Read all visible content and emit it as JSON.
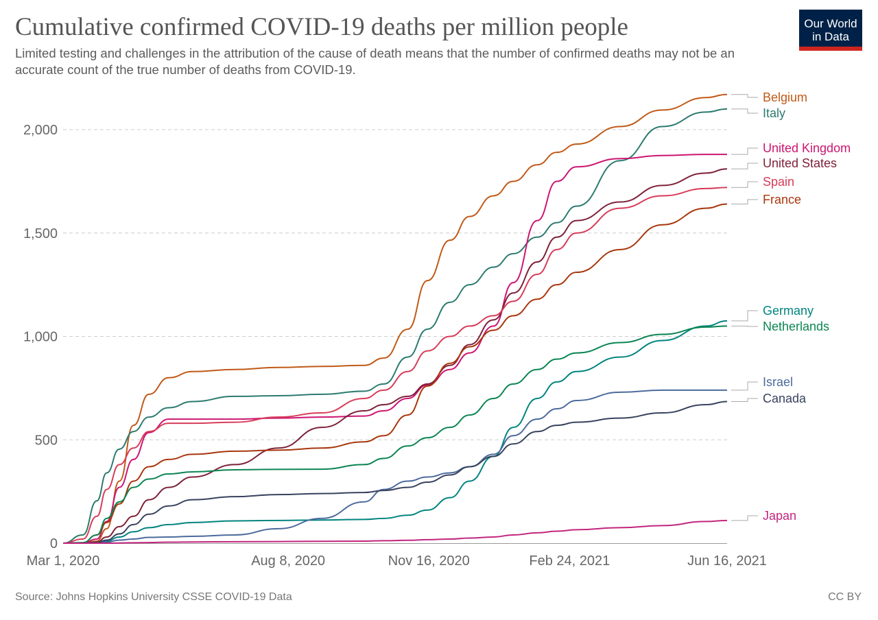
{
  "title": "Cumulative confirmed COVID-19 deaths per million people",
  "subtitle": "Limited testing and challenges in the attribution of the cause of death means that the number of confirmed deaths may not be an accurate count of the true number of deaths from COVID-19.",
  "logo": {
    "text": "Our World in Data",
    "bg": "#002147",
    "accent": "#ce261e"
  },
  "source": "Source: Johns Hopkins University CSSE COVID-19 Data",
  "license": "CC BY",
  "chart_data": {
    "type": "line",
    "title": "Cumulative confirmed COVID-19 deaths per million people",
    "xlabel": "",
    "ylabel": "",
    "xlim": [
      "2020-03-01",
      "2021-06-16"
    ],
    "ylim": [
      0,
      2170
    ],
    "grid": "horizontal dashed",
    "legend": "right, labels at line ends",
    "x_ticks": [
      {
        "date": "2020-03-01",
        "label": "Mar 1, 2020"
      },
      {
        "date": "2020-08-08",
        "label": "Aug 8, 2020"
      },
      {
        "date": "2020-11-16",
        "label": "Nov 16, 2020"
      },
      {
        "date": "2021-02-24",
        "label": "Feb 24, 2021"
      },
      {
        "date": "2021-06-16",
        "label": "Jun 16, 2021"
      }
    ],
    "y_ticks": [
      {
        "value": 0,
        "label": "0"
      },
      {
        "value": 500,
        "label": "500"
      },
      {
        "value": 1000,
        "label": "1,000"
      },
      {
        "value": 1500,
        "label": "1,500"
      },
      {
        "value": 2000,
        "label": "2,000"
      }
    ],
    "dates": [
      "2020-03-01",
      "2020-03-15",
      "2020-03-25",
      "2020-04-01",
      "2020-04-10",
      "2020-04-20",
      "2020-05-01",
      "2020-05-15",
      "2020-06-01",
      "2020-07-01",
      "2020-08-01",
      "2020-09-01",
      "2020-10-01",
      "2020-10-15",
      "2020-11-01",
      "2020-11-15",
      "2020-12-01",
      "2020-12-15",
      "2021-01-01",
      "2021-01-15",
      "2021-02-01",
      "2021-02-15",
      "2021-03-01",
      "2021-04-01",
      "2021-05-01",
      "2021-06-01",
      "2021-06-16"
    ],
    "series": [
      {
        "name": "Belgium",
        "color": "#c05917",
        "values": [
          0,
          0,
          10,
          70,
          300,
          570,
          720,
          800,
          830,
          840,
          850,
          855,
          860,
          895,
          1035,
          1270,
          1465,
          1580,
          1680,
          1750,
          1830,
          1890,
          1930,
          2015,
          2095,
          2155,
          2170
        ]
      },
      {
        "name": "Italy",
        "color": "#2b7a6f",
        "values": [
          0,
          40,
          205,
          340,
          455,
          540,
          610,
          655,
          685,
          710,
          713,
          720,
          735,
          770,
          900,
          1035,
          1165,
          1250,
          1335,
          1400,
          1480,
          1550,
          1630,
          1850,
          2015,
          2085,
          2100
        ]
      },
      {
        "name": "United Kingdom",
        "color": "#cc1572",
        "values": [
          0,
          0,
          20,
          105,
          270,
          405,
          535,
          600,
          600,
          600,
          605,
          610,
          615,
          640,
          700,
          765,
          840,
          920,
          1050,
          1260,
          1560,
          1750,
          1820,
          1860,
          1875,
          1880,
          1880
        ]
      },
      {
        "name": "United States",
        "color": "#7e2138",
        "values": [
          0,
          0,
          5,
          30,
          80,
          130,
          210,
          270,
          320,
          380,
          460,
          560,
          640,
          670,
          710,
          770,
          860,
          960,
          1080,
          1210,
          1360,
          1480,
          1560,
          1650,
          1730,
          1790,
          1810
        ]
      },
      {
        "name": "Spain",
        "color": "#d73c58",
        "values": [
          0,
          20,
          130,
          260,
          380,
          460,
          540,
          580,
          580,
          585,
          610,
          630,
          700,
          740,
          830,
          930,
          1000,
          1050,
          1100,
          1170,
          1300,
          1420,
          1500,
          1620,
          1680,
          1715,
          1720
        ]
      },
      {
        "name": "France",
        "color": "#a8360d",
        "values": [
          0,
          2,
          40,
          100,
          190,
          300,
          370,
          405,
          430,
          445,
          450,
          460,
          490,
          520,
          620,
          760,
          870,
          950,
          1030,
          1100,
          1180,
          1250,
          1310,
          1420,
          1540,
          1620,
          1640
        ]
      },
      {
        "name": "Germany",
        "color": "#00847e",
        "values": [
          0,
          0,
          2,
          10,
          30,
          55,
          75,
          90,
          100,
          108,
          110,
          112,
          115,
          120,
          135,
          160,
          220,
          300,
          420,
          560,
          700,
          780,
          830,
          900,
          980,
          1050,
          1075
        ]
      },
      {
        "name": "Netherlands",
        "color": "#0b8552",
        "values": [
          0,
          3,
          40,
          120,
          200,
          270,
          310,
          335,
          345,
          355,
          357,
          358,
          380,
          410,
          470,
          510,
          560,
          620,
          700,
          770,
          840,
          890,
          920,
          970,
          1010,
          1045,
          1050
        ]
      },
      {
        "name": "Israel",
        "color": "#4c6a9c",
        "values": [
          0,
          0,
          1,
          5,
          15,
          20,
          28,
          30,
          33,
          40,
          70,
          120,
          200,
          260,
          300,
          320,
          340,
          370,
          430,
          520,
          600,
          650,
          690,
          730,
          740,
          740,
          740
        ]
      },
      {
        "name": "Canada",
        "color": "#38425e",
        "values": [
          0,
          0,
          3,
          15,
          45,
          90,
          140,
          180,
          210,
          225,
          235,
          240,
          245,
          255,
          270,
          295,
          330,
          370,
          420,
          480,
          540,
          570,
          585,
          605,
          630,
          670,
          685
        ]
      },
      {
        "name": "Japan",
        "color": "#c2257e",
        "values": [
          0,
          0,
          0,
          0,
          1,
          2,
          3,
          5,
          6,
          7,
          8,
          9,
          10,
          12,
          14,
          17,
          20,
          25,
          30,
          40,
          50,
          58,
          65,
          75,
          85,
          105,
          110
        ]
      }
    ]
  }
}
